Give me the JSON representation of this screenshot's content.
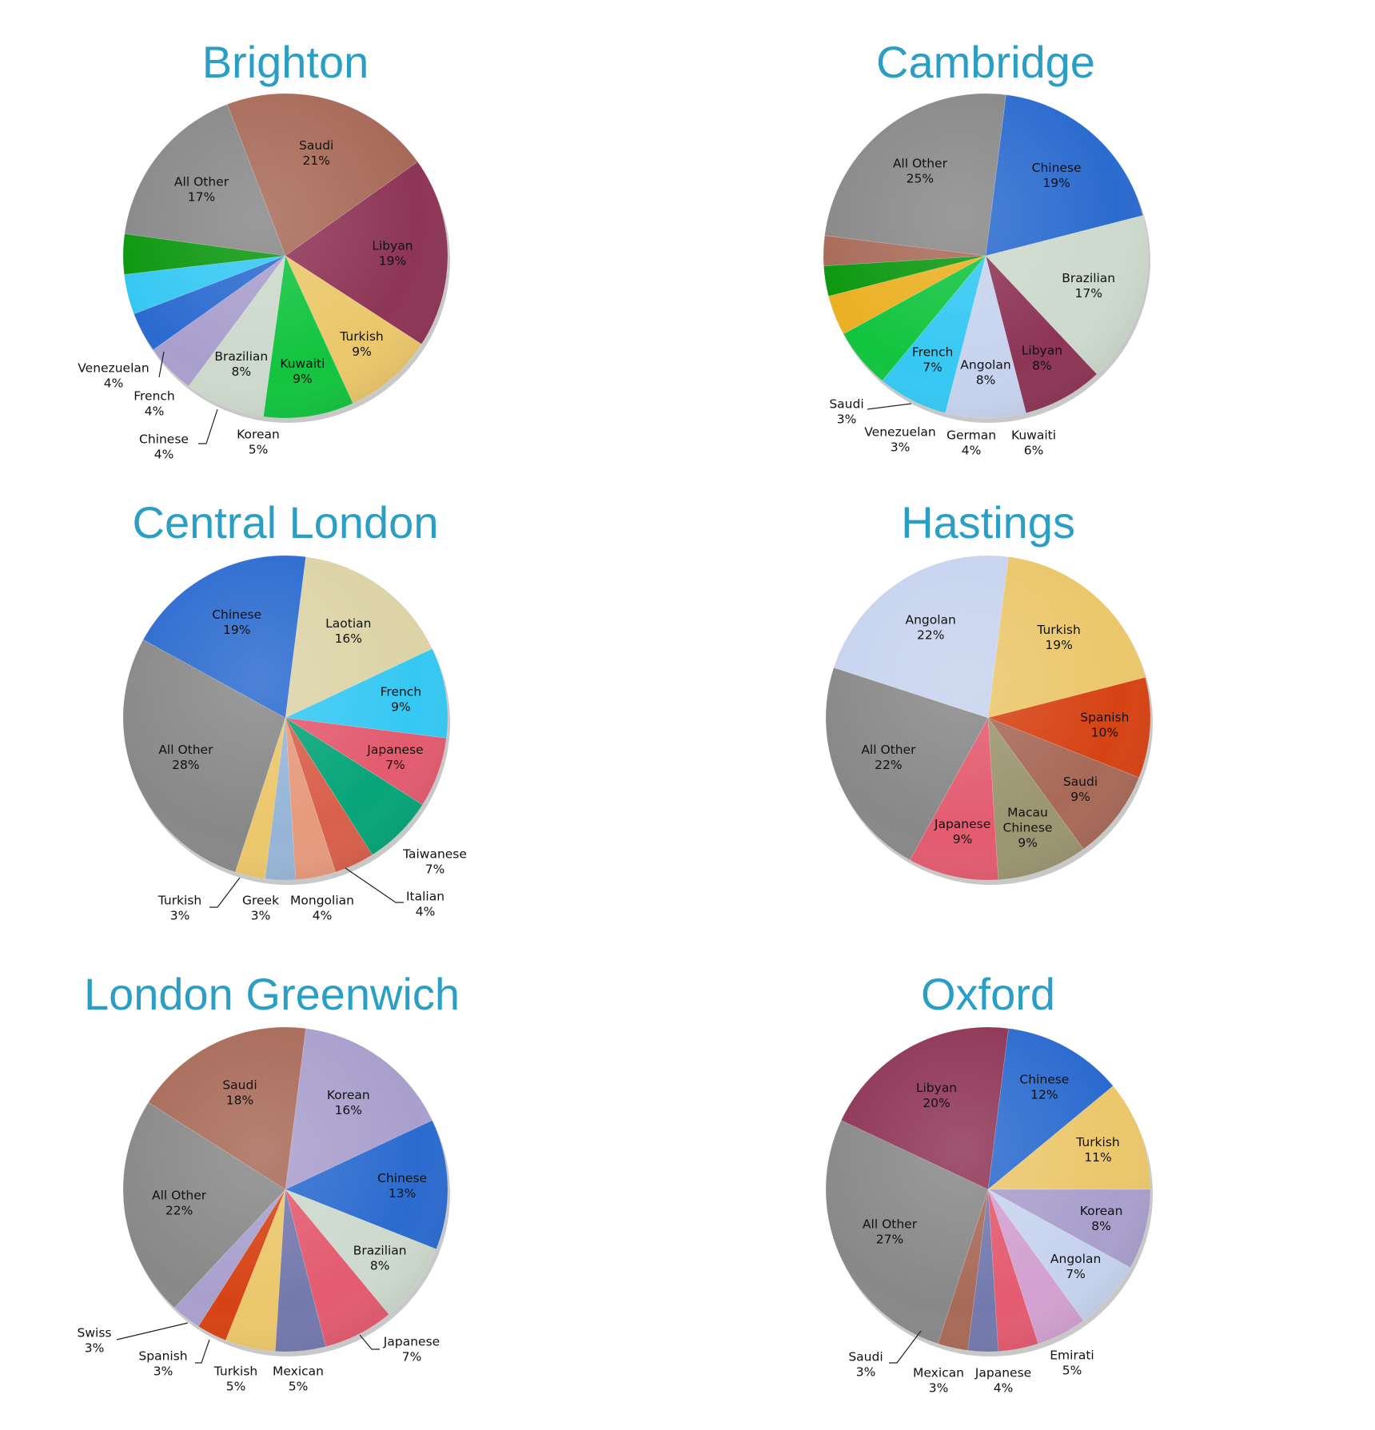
{
  "chart_data": [
    {
      "type": "pie",
      "title": "Brighton",
      "slices": [
        {
          "label": "Saudi",
          "value": 21,
          "pct": "21%",
          "color": "#a86a58"
        },
        {
          "label": "Libyan",
          "value": 19,
          "pct": "19%",
          "color": "#8e3556"
        },
        {
          "label": "Turkish",
          "value": 9,
          "pct": "9%",
          "color": "#ebc76b"
        },
        {
          "label": "Kuwaiti",
          "value": 9,
          "pct": "9%",
          "color": "#12c43f"
        },
        {
          "label": "Brazilian",
          "value": 8,
          "pct": "8%",
          "color": "#ccd9cc"
        },
        {
          "label": "Korean",
          "value": 5,
          "pct": "5%",
          "color": "#a99fcd"
        },
        {
          "label": "Chinese",
          "value": 4,
          "pct": "4%",
          "color": "#2b6bcf"
        },
        {
          "label": "French",
          "value": 4,
          "pct": "4%",
          "color": "#35c8f3"
        },
        {
          "label": "Venezuelan",
          "value": 4,
          "pct": "4%",
          "color": "#0b970f"
        },
        {
          "label": "All Other",
          "value": 17,
          "pct": "17%",
          "color": "#888888"
        }
      ]
    },
    {
      "type": "pie",
      "title": "Cambridge",
      "slices": [
        {
          "label": "Chinese",
          "value": 19,
          "pct": "19%",
          "color": "#2b6bcf"
        },
        {
          "label": "Brazilian",
          "value": 17,
          "pct": "17%",
          "color": "#ccd9cc"
        },
        {
          "label": "Libyan",
          "value": 8,
          "pct": "8%",
          "color": "#8e3556"
        },
        {
          "label": "Angolan",
          "value": 8,
          "pct": "8%",
          "color": "#c7d3ee"
        },
        {
          "label": "French",
          "value": 7,
          "pct": "7%",
          "color": "#35c8f3"
        },
        {
          "label": "Kuwaiti",
          "value": 6,
          "pct": "6%",
          "color": "#12c43f"
        },
        {
          "label": "German",
          "value": 4,
          "pct": "4%",
          "color": "#ebb023"
        },
        {
          "label": "Venezuelan",
          "value": 3,
          "pct": "3%",
          "color": "#0b970f"
        },
        {
          "label": "Saudi",
          "value": 3,
          "pct": "3%",
          "color": "#a86a58"
        },
        {
          "label": "All Other",
          "value": 25,
          "pct": "25%",
          "color": "#888888"
        }
      ]
    },
    {
      "type": "pie",
      "title": "Central London",
      "slices": [
        {
          "label": "Laotian",
          "value": 16,
          "pct": "16%",
          "color": "#dcd3a7"
        },
        {
          "label": "French",
          "value": 9,
          "pct": "9%",
          "color": "#35c8f3"
        },
        {
          "label": "Japanese",
          "value": 7,
          "pct": "7%",
          "color": "#e35b6f"
        },
        {
          "label": "Taiwanese",
          "value": 7,
          "pct": "7%",
          "color": "#07a579"
        },
        {
          "label": "Italian",
          "value": 4,
          "pct": "4%",
          "color": "#d8604c"
        },
        {
          "label": "Mongolian",
          "value": 4,
          "pct": "4%",
          "color": "#e79a7c"
        },
        {
          "label": "Greek",
          "value": 3,
          "pct": "3%",
          "color": "#96b5d6"
        },
        {
          "label": "Turkish",
          "value": 3,
          "pct": "3%",
          "color": "#ebc76b"
        },
        {
          "label": "All Other",
          "value": 28,
          "pct": "28%",
          "color": "#888888"
        },
        {
          "label": "Chinese",
          "value": 19,
          "pct": "19%",
          "color": "#2b6bcf"
        }
      ]
    },
    {
      "type": "pie",
      "title": "Hastings",
      "slices": [
        {
          "label": "Turkish",
          "value": 19,
          "pct": "19%",
          "color": "#ebc76b"
        },
        {
          "label": "Spanish",
          "value": 10,
          "pct": "10%",
          "color": "#d64314"
        },
        {
          "label": "Saudi",
          "value": 9,
          "pct": "9%",
          "color": "#a86a58"
        },
        {
          "label": "Macau Chinese",
          "value": 9,
          "pct": "9%",
          "color": "#9b9570"
        },
        {
          "label": "Japanese",
          "value": 9,
          "pct": "9%",
          "color": "#e35b6f"
        },
        {
          "label": "All Other",
          "value": 22,
          "pct": "22%",
          "color": "#888888"
        },
        {
          "label": "Angolan",
          "value": 22,
          "pct": "22%",
          "color": "#c7d3ee"
        }
      ]
    },
    {
      "type": "pie",
      "title": "London Greenwich",
      "slices": [
        {
          "label": "Korean",
          "value": 16,
          "pct": "16%",
          "color": "#a99fcd"
        },
        {
          "label": "Chinese",
          "value": 13,
          "pct": "13%",
          "color": "#2b6bcf"
        },
        {
          "label": "Brazilian",
          "value": 8,
          "pct": "8%",
          "color": "#ccd9cc"
        },
        {
          "label": "Japanese",
          "value": 7,
          "pct": "7%",
          "color": "#e35b6f"
        },
        {
          "label": "Mexican",
          "value": 5,
          "pct": "5%",
          "color": "#7479ad"
        },
        {
          "label": "Turkish",
          "value": 5,
          "pct": "5%",
          "color": "#ebc76b"
        },
        {
          "label": "Spanish",
          "value": 3,
          "pct": "3%",
          "color": "#d64314"
        },
        {
          "label": "Swiss",
          "value": 3,
          "pct": "3%",
          "color": "#a99fcd"
        },
        {
          "label": "All Other",
          "value": 22,
          "pct": "22%",
          "color": "#888888"
        },
        {
          "label": "Saudi",
          "value": 18,
          "pct": "18%",
          "color": "#a86a58"
        }
      ]
    },
    {
      "type": "pie",
      "title": "Oxford",
      "slices": [
        {
          "label": "Chinese",
          "value": 12,
          "pct": "12%",
          "color": "#2b6bcf"
        },
        {
          "label": "Turkish",
          "value": 11,
          "pct": "11%",
          "color": "#ebc76b"
        },
        {
          "label": "Korean",
          "value": 8,
          "pct": "8%",
          "color": "#a99fcd"
        },
        {
          "label": "Angolan",
          "value": 7,
          "pct": "7%",
          "color": "#c7d3ee"
        },
        {
          "label": "Emirati",
          "value": 5,
          "pct": "5%",
          "color": "#d3a1d0"
        },
        {
          "label": "Japanese",
          "value": 4,
          "pct": "4%",
          "color": "#e35b6f"
        },
        {
          "label": "Mexican",
          "value": 3,
          "pct": "3%",
          "color": "#7479ad"
        },
        {
          "label": "Saudi",
          "value": 3,
          "pct": "3%",
          "color": "#a86a58"
        },
        {
          "label": "All Other",
          "value": 27,
          "pct": "27%",
          "color": "#888888"
        },
        {
          "label": "Libyan",
          "value": 20,
          "pct": "20%",
          "color": "#8e3556"
        }
      ]
    }
  ]
}
